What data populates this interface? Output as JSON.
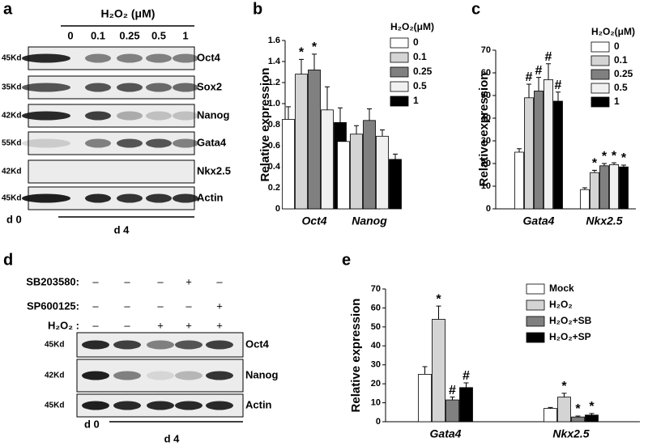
{
  "chart_data": [
    {
      "type": "bar",
      "panel": "b",
      "y_label": "Relative expression",
      "legend_title": "H₂O₂(μM)",
      "categories": [
        "Oct4",
        "Nanog"
      ],
      "series": [
        {
          "name": "0",
          "color": "#ffffff",
          "values": [
            0.85,
            0.64
          ],
          "errors": [
            0.12,
            0.04
          ],
          "annotations": [
            null,
            null
          ]
        },
        {
          "name": "0.1",
          "color": "#d4d4d4",
          "values": [
            1.28,
            0.71
          ],
          "errors": [
            0.14,
            0.08
          ],
          "annotations": [
            "*",
            null
          ]
        },
        {
          "name": "0.25",
          "color": "#808080",
          "values": [
            1.32,
            0.84
          ],
          "errors": [
            0.15,
            0.11
          ],
          "annotations": [
            "*",
            null
          ]
        },
        {
          "name": "0.5",
          "color": "#f0f0f0",
          "values": [
            0.94,
            0.69
          ],
          "errors": [
            0.22,
            0.06
          ],
          "annotations": [
            null,
            null
          ]
        },
        {
          "name": "1",
          "color": "#000000",
          "values": [
            0.82,
            0.47
          ],
          "errors": [
            0.14,
            0.05
          ],
          "annotations": [
            null,
            null
          ]
        }
      ],
      "ylim": [
        0,
        1.6
      ],
      "yticks": [
        0,
        0.2,
        0.4,
        0.6,
        0.8,
        {
          "value": 1,
          "label": "1.0"
        },
        1.2,
        1.4,
        1.6
      ]
    },
    {
      "type": "bar",
      "panel": "c",
      "y_label": "Relative expression",
      "legend_title": "H₂O₂(μM)",
      "categories": [
        "Gata4",
        "Nkx2.5"
      ],
      "series": [
        {
          "name": "0",
          "color": "#ffffff",
          "values": [
            25,
            8.5
          ],
          "errors": [
            1.5,
            0.8
          ],
          "annotations": [
            null,
            null
          ]
        },
        {
          "name": "0.1",
          "color": "#d4d4d4",
          "values": [
            49,
            16
          ],
          "errors": [
            6,
            1
          ],
          "annotations": [
            "#",
            "*"
          ]
        },
        {
          "name": "0.25",
          "color": "#808080",
          "values": [
            52,
            19
          ],
          "errors": [
            6,
            1
          ],
          "annotations": [
            "#",
            "*"
          ]
        },
        {
          "name": "0.5",
          "color": "#f0f0f0",
          "values": [
            57,
            19.5
          ],
          "errors": [
            7,
            0.8
          ],
          "annotations": [
            "#",
            "*"
          ]
        },
        {
          "name": "1",
          "color": "#000000",
          "values": [
            47.5,
            18.5
          ],
          "errors": [
            4,
            0.8
          ],
          "annotations": [
            "#",
            "*"
          ]
        }
      ],
      "ylim": [
        0,
        70
      ],
      "yticks": [
        0,
        10,
        20,
        30,
        40,
        50,
        60,
        70
      ]
    },
    {
      "type": "bar",
      "panel": "e",
      "y_label": "Relative expression",
      "categories": [
        "Gata4",
        "Nkx2.5"
      ],
      "series": [
        {
          "name": "Mock",
          "color": "#ffffff",
          "values": [
            25,
            7
          ],
          "errors": [
            4,
            0.5
          ],
          "annotations": [
            null,
            null
          ]
        },
        {
          "name": "H₂O₂",
          "color": "#d4d4d4",
          "values": [
            54,
            13
          ],
          "errors": [
            7,
            2
          ],
          "annotations": [
            "*",
            "*"
          ]
        },
        {
          "name": "H₂O₂+SB",
          "color": "#808080",
          "values": [
            11.5,
            2.5
          ],
          "errors": [
            1.5,
            0.5
          ],
          "annotations": [
            "#",
            "*"
          ]
        },
        {
          "name": "H₂O₂+SP",
          "color": "#000000",
          "values": [
            18,
            3.5
          ],
          "errors": [
            2.5,
            0.8
          ],
          "annotations": [
            "#",
            "*"
          ]
        }
      ],
      "ylim": [
        0,
        70
      ],
      "yticks": [
        0,
        10,
        20,
        30,
        40,
        50,
        60,
        70
      ]
    }
  ],
  "blots": [
    {
      "panel": "a",
      "header": "H₂O₂ (μM)",
      "lanes": [
        "0",
        "0.1",
        "0.25",
        "0.5",
        "1"
      ],
      "rows": [
        {
          "size": "45Kd",
          "protein": "Oct4"
        },
        {
          "size": "35Kd",
          "protein": "Sox2"
        },
        {
          "size": "42Kd",
          "protein": "Nanog"
        },
        {
          "size": "55Kd",
          "protein": "Gata4"
        },
        {
          "size": "42Kd",
          "protein": "Nkx2.5"
        },
        {
          "size": "45Kd",
          "protein": "Actin"
        }
      ],
      "timepoints": [
        "d 0",
        "d 4"
      ]
    },
    {
      "panel": "d",
      "treatments": [
        {
          "name": "SB203580:",
          "marks": [
            "–",
            "–",
            "–",
            "+",
            "–"
          ]
        },
        {
          "name": "SP600125:",
          "marks": [
            "–",
            "–",
            "–",
            "–",
            "+"
          ]
        },
        {
          "name": "H₂O₂ :",
          "marks": [
            "–",
            "–",
            "+",
            "+",
            "+"
          ]
        }
      ],
      "rows": [
        {
          "size": "45Kd",
          "protein": "Oct4"
        },
        {
          "size": "42Kd",
          "protein": "Nanog"
        },
        {
          "size": "45Kd",
          "protein": "Actin"
        }
      ],
      "timepoints": [
        "d 0",
        "d 4"
      ]
    }
  ]
}
